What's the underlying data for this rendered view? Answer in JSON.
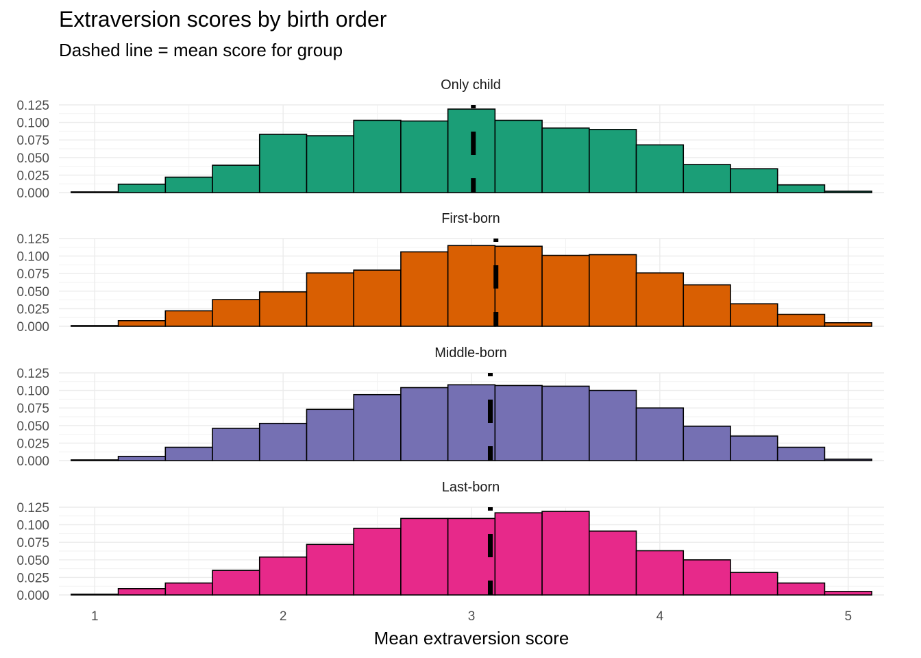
{
  "chart_data": {
    "type": "histogram",
    "title": "Extraversion scores by birth order",
    "subtitle": "Dashed line = mean score for group",
    "xlabel": "Mean extraversion score",
    "ylabel": "",
    "xlim": [
      0.875,
      5.125
    ],
    "ylim": [
      0,
      0.125
    ],
    "x_ticks": [
      1,
      2,
      3,
      4,
      5
    ],
    "x_tick_labels": [
      "1",
      "2",
      "3",
      "4",
      "5"
    ],
    "y_ticks": [
      0,
      0.025,
      0.05,
      0.075,
      0.1,
      0.125
    ],
    "y_tick_labels": [
      "0.000",
      "0.025",
      "0.050",
      "0.075",
      "0.100",
      "0.125"
    ],
    "bin_edges": [
      0.875,
      1.125,
      1.375,
      1.625,
      1.875,
      2.125,
      2.375,
      2.625,
      2.875,
      3.125,
      3.375,
      3.625,
      3.875,
      4.125,
      4.375,
      4.625,
      4.875,
      5.125
    ],
    "grid": true,
    "legend": "none",
    "series": [
      {
        "name": "Only child",
        "color": "#1B9E77",
        "mean": 3.01,
        "values": [
          0.001,
          0.012,
          0.022,
          0.039,
          0.083,
          0.081,
          0.103,
          0.102,
          0.119,
          0.103,
          0.092,
          0.09,
          0.068,
          0.04,
          0.034,
          0.011,
          0.002
        ]
      },
      {
        "name": "First-born",
        "color": "#D95F02",
        "mean": 3.13,
        "values": [
          0.001,
          0.008,
          0.022,
          0.038,
          0.049,
          0.076,
          0.08,
          0.106,
          0.115,
          0.114,
          0.101,
          0.102,
          0.076,
          0.059,
          0.032,
          0.017,
          0.005
        ]
      },
      {
        "name": "Middle-born",
        "color": "#7570B3",
        "mean": 3.1,
        "values": [
          0.001,
          0.006,
          0.019,
          0.046,
          0.053,
          0.073,
          0.094,
          0.104,
          0.108,
          0.107,
          0.106,
          0.1,
          0.075,
          0.049,
          0.035,
          0.019,
          0.002
        ]
      },
      {
        "name": "Last-born",
        "color": "#E7298A",
        "mean": 3.1,
        "values": [
          0.001,
          0.009,
          0.017,
          0.035,
          0.054,
          0.072,
          0.095,
          0.109,
          0.109,
          0.117,
          0.119,
          0.091,
          0.063,
          0.05,
          0.032,
          0.017,
          0.005
        ]
      }
    ]
  }
}
